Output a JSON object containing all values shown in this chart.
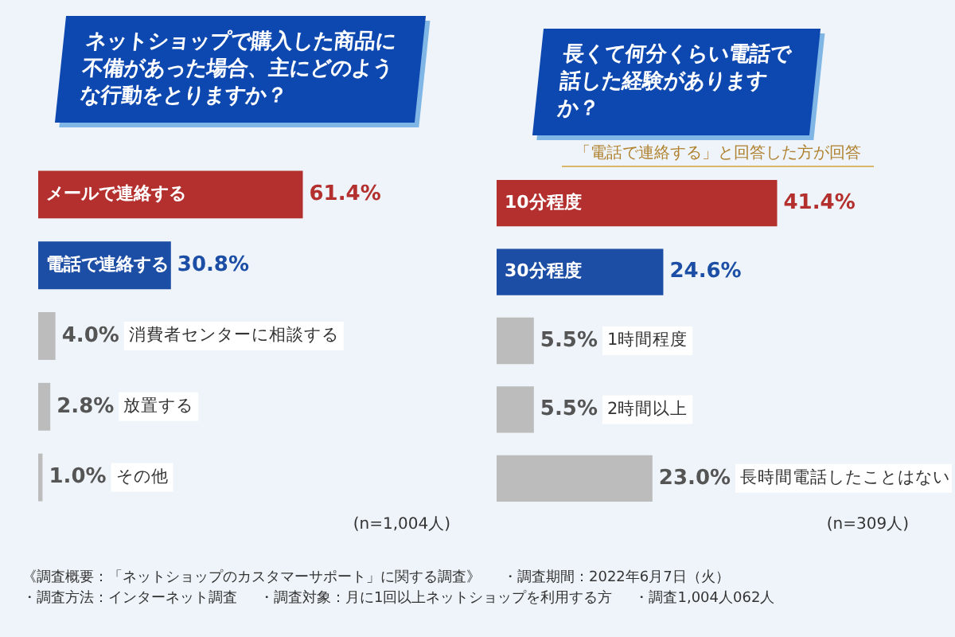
{
  "chart_data": [
    {
      "type": "bar",
      "orientation": "horizontal",
      "title": "ネットショップで購入した商品に不備があった場合、主にどのような行動をとりますか？",
      "categories": [
        "メールで連絡する",
        "電話で連絡する",
        "消費者センターに相談する",
        "放置する",
        "その他"
      ],
      "values": [
        61.4,
        30.8,
        4.0,
        2.8,
        1.0
      ],
      "colors": [
        "#b3302e",
        "#1d4ea6",
        "#bcbcbc",
        "#bcbcbc",
        "#bcbcbc"
      ],
      "value_labels": [
        "61.4%",
        "30.8%",
        "4.0%",
        "2.8%",
        "1.0%"
      ],
      "tick_labels": false,
      "legend": false,
      "annotations": [
        "(n=1,004人)",
        "《調査概要：「ネットショップのカスタマーサポート」に関する調査》",
        "・調査期間：2022年6月7日（火）",
        "・調査方法：インターネット調査",
        "・調査対象：月に1回以上ネットショップを利用する方",
        "・調査1,004人062人"
      ]
    },
    {
      "type": "bar",
      "orientation": "horizontal",
      "title": "長くて何分くらい電話で話した経験がありますか？",
      "subtitle": "「電話で連絡する」と回答した方が回答",
      "categories": [
        "10分程度",
        "30分程度",
        "1時間程度",
        "2時間以上",
        "長時間電話したことはない"
      ],
      "values": [
        41.4,
        24.6,
        5.5,
        5.5,
        23.0
      ],
      "colors": [
        "#b3302e",
        "#1d4ea6",
        "#bcbcbc",
        "#bcbcbc",
        "#bcbcbc"
      ],
      "value_labels": [
        "41.4%",
        "24.6%",
        "5.5%",
        "5.5%",
        "23.0%"
      ],
      "tick_labels": false,
      "legend": false,
      "annotations": [
        "(n=309人)"
      ]
    }
  ]
}
